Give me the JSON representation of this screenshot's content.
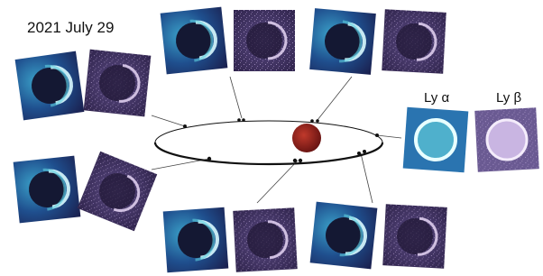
{
  "header": {
    "title": "2021 July 29"
  },
  "labels": {
    "ly_alpha": "Ly α",
    "ly_beta": "Ly β"
  }
}
